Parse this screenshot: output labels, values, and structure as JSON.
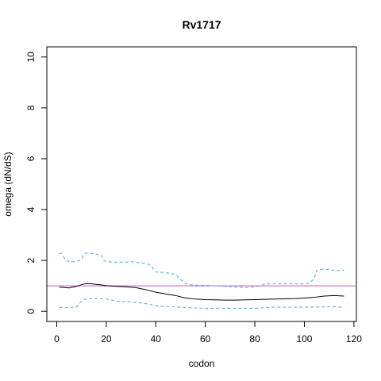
{
  "chart_data": {
    "type": "line",
    "title": "Rv1717",
    "xlabel": "codon",
    "ylabel": "omega (dN/dS)",
    "xlim": [
      -4,
      121
    ],
    "ylim": [
      -0.4,
      10.4
    ],
    "x_ticks": [
      0,
      20,
      40,
      60,
      80,
      100,
      120
    ],
    "x_tick_labels": [
      "0",
      "20",
      "40",
      "60",
      "80",
      "100",
      "120"
    ],
    "y_ticks": [
      0,
      2,
      4,
      6,
      8,
      10
    ],
    "y_tick_labels": [
      "0",
      "2",
      "4",
      "6",
      "8",
      "10"
    ],
    "grid": false,
    "reference_line": {
      "y": 1,
      "color": "#c05ec0"
    },
    "series": [
      {
        "role": "estimate",
        "color": "#000000",
        "style": "solid",
        "x": [
          1,
          5,
          8,
          10,
          12,
          14,
          16,
          18,
          20,
          24,
          28,
          32,
          36,
          40,
          44,
          48,
          52,
          56,
          60,
          64,
          68,
          72,
          76,
          80,
          84,
          88,
          92,
          96,
          100,
          104,
          108,
          112,
          116
        ],
        "y": [
          0.95,
          0.92,
          0.98,
          1.05,
          1.09,
          1.08,
          1.06,
          1.04,
          1.01,
          0.98,
          0.96,
          0.93,
          0.85,
          0.75,
          0.68,
          0.62,
          0.52,
          0.48,
          0.46,
          0.45,
          0.44,
          0.44,
          0.45,
          0.46,
          0.47,
          0.48,
          0.49,
          0.5,
          0.52,
          0.55,
          0.6,
          0.62,
          0.6
        ]
      },
      {
        "role": "upper",
        "color": "#4aa8e0",
        "style": "dashed",
        "x": [
          1,
          2,
          3,
          4,
          5,
          7,
          9,
          10,
          11,
          12,
          14,
          16,
          18,
          19,
          20,
          24,
          28,
          30,
          32,
          34,
          36,
          38,
          40,
          44,
          48,
          50,
          52,
          53,
          56,
          60,
          64,
          68,
          72,
          74,
          76,
          78,
          80,
          82,
          84,
          88,
          92,
          96,
          100,
          102,
          104,
          105,
          106,
          108,
          110,
          112,
          114,
          116
        ],
        "y": [
          2.28,
          2.28,
          2.1,
          2.0,
          1.95,
          1.95,
          2.0,
          2.05,
          2.25,
          2.3,
          2.28,
          2.25,
          2.2,
          2.0,
          1.95,
          1.93,
          1.93,
          1.95,
          1.93,
          1.9,
          1.88,
          1.8,
          1.55,
          1.52,
          1.45,
          1.25,
          1.1,
          1.05,
          1.03,
          1.02,
          1.0,
          0.98,
          0.96,
          0.95,
          0.93,
          0.95,
          0.97,
          1.0,
          1.08,
          1.08,
          1.08,
          1.08,
          1.08,
          1.1,
          1.3,
          1.6,
          1.65,
          1.65,
          1.65,
          1.6,
          1.6,
          1.62
        ]
      },
      {
        "role": "lower",
        "color": "#4aa8e0",
        "style": "dashed",
        "x": [
          1,
          4,
          8,
          9,
          10,
          12,
          16,
          20,
          22,
          24,
          28,
          32,
          36,
          40,
          44,
          48,
          52,
          56,
          60,
          64,
          68,
          72,
          76,
          80,
          82,
          84,
          88,
          92,
          96,
          100,
          104,
          108,
          112,
          116
        ],
        "y": [
          0.15,
          0.15,
          0.16,
          0.3,
          0.4,
          0.5,
          0.5,
          0.48,
          0.45,
          0.4,
          0.38,
          0.35,
          0.3,
          0.22,
          0.18,
          0.17,
          0.15,
          0.13,
          0.12,
          0.12,
          0.12,
          0.12,
          0.12,
          0.12,
          0.12,
          0.15,
          0.16,
          0.16,
          0.16,
          0.16,
          0.16,
          0.17,
          0.18,
          0.15
        ]
      }
    ]
  }
}
